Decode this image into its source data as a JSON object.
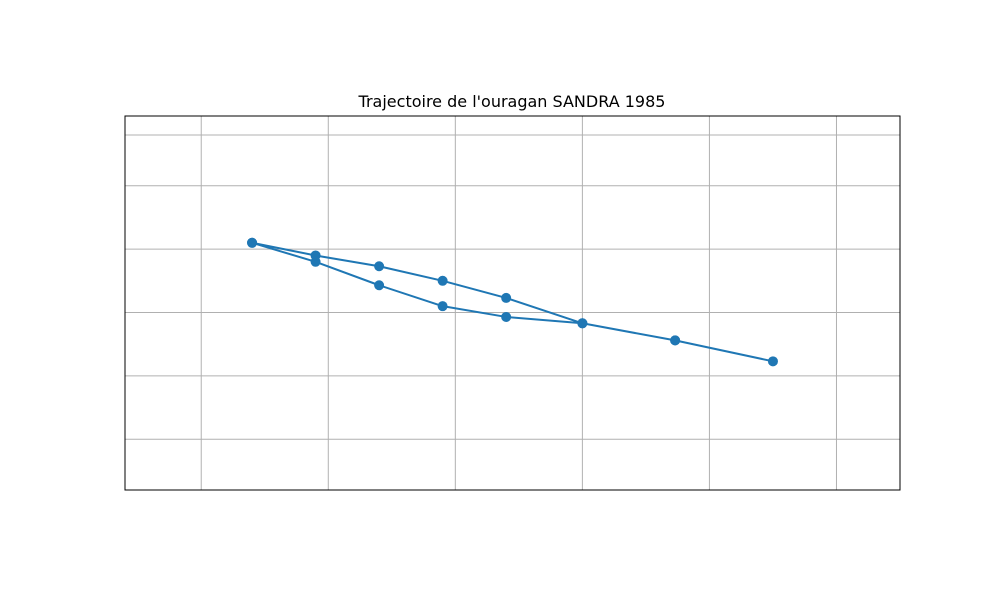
{
  "chart_data": {
    "type": "line",
    "title": "Trajectoire de l'ouragan SANDRA 1985",
    "xlabel": "",
    "ylabel": "",
    "grid": true,
    "legend": false,
    "marker": "circle",
    "x_tick_labels_visible": false,
    "y_tick_labels_visible": false,
    "xlim": [
      -0.6,
      5.5
    ],
    "ylim": [
      -1.3,
      4.6
    ],
    "x_grid_values": [
      0,
      1,
      2,
      3,
      4,
      5
    ],
    "y_grid_values": [
      -0.5,
      0.5,
      1.5,
      2.5,
      3.5,
      4.3
    ],
    "series": [
      {
        "name": "",
        "color": "#1f77b4",
        "x": [
          0.4,
          0.9,
          1.4,
          1.9,
          2.4,
          3.0,
          3.73,
          4.5,
          3.73,
          3.0,
          2.4,
          1.9,
          1.4,
          0.9,
          0.4
        ],
        "y": [
          2.6,
          2.3,
          1.93,
          1.6,
          1.43,
          1.33,
          1.06,
          0.73,
          1.06,
          1.33,
          1.73,
          2.0,
          2.23,
          2.4,
          2.6
        ]
      }
    ]
  }
}
